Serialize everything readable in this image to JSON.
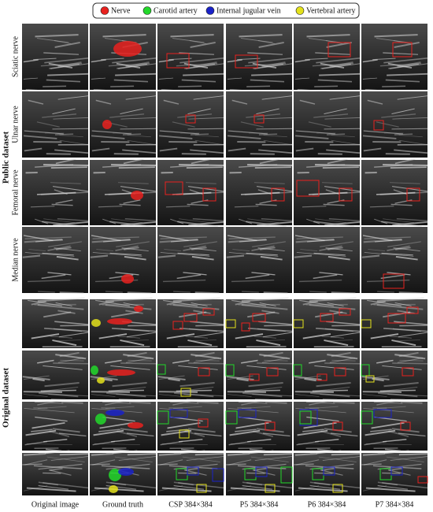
{
  "legend": [
    {
      "label": "Nerve",
      "color": "#e8211e"
    },
    {
      "label": "Carotid artery",
      "color": "#22d82a"
    },
    {
      "label": "Internal jugular vein",
      "color": "#1a22c8"
    },
    {
      "label": "Vertebral artery",
      "color": "#e4e21c"
    }
  ],
  "groups": [
    {
      "label": "Public dataset",
      "rows": [
        "Sciatic nerve",
        "Ulnar nerve",
        "Femoral nerve",
        "Median nerve"
      ]
    },
    {
      "label": "Original dataset"
    }
  ],
  "columns": [
    "Original image",
    "Ground truth",
    "CSP 384×384",
    "P5 384×384",
    "P6 384×384",
    "P7 384×384"
  ]
}
